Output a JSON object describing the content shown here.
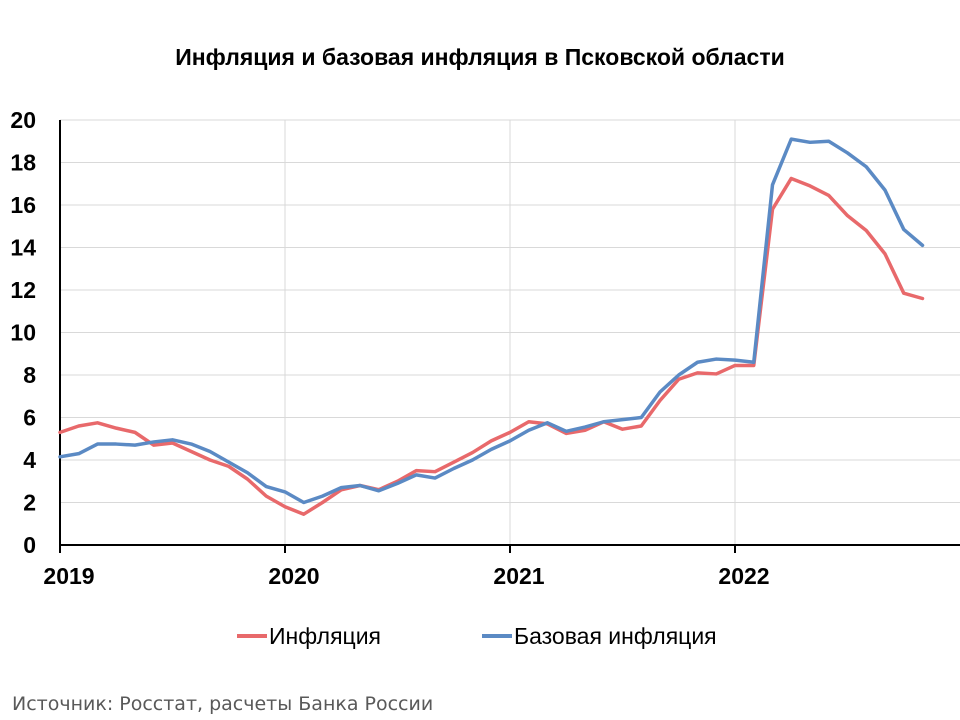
{
  "chart_data": {
    "type": "line",
    "title": "Инфляция и базовая инфляция в Псковской области",
    "ylim": [
      0,
      20
    ],
    "yticks": [
      0,
      2,
      4,
      6,
      8,
      10,
      12,
      14,
      16,
      18,
      20
    ],
    "xlim": [
      "2019-01",
      "2023-01"
    ],
    "xticks": [
      "2019",
      "2020",
      "2021",
      "2022"
    ],
    "grid": true,
    "legend_position": "bottom",
    "x": [
      "2019-01",
      "2019-02",
      "2019-03",
      "2019-04",
      "2019-05",
      "2019-06",
      "2019-07",
      "2019-08",
      "2019-09",
      "2019-10",
      "2019-11",
      "2019-12",
      "2020-01",
      "2020-02",
      "2020-03",
      "2020-04",
      "2020-05",
      "2020-06",
      "2020-07",
      "2020-08",
      "2020-09",
      "2020-10",
      "2020-11",
      "2020-12",
      "2021-01",
      "2021-02",
      "2021-03",
      "2021-04",
      "2021-05",
      "2021-06",
      "2021-07",
      "2021-08",
      "2021-09",
      "2021-10",
      "2021-11",
      "2021-12",
      "2022-01",
      "2022-02",
      "2022-03",
      "2022-04",
      "2022-05",
      "2022-06",
      "2022-07",
      "2022-08",
      "2022-09",
      "2022-10",
      "2022-11"
    ],
    "series": [
      {
        "name": "Инфляция",
        "color": "#E8696B",
        "values": [
          5.3,
          5.6,
          5.75,
          5.5,
          5.3,
          4.7,
          4.8,
          4.4,
          4.0,
          3.7,
          3.1,
          2.3,
          1.8,
          1.45,
          2.0,
          2.6,
          2.8,
          2.6,
          3.0,
          3.5,
          3.45,
          3.9,
          4.35,
          4.9,
          5.3,
          5.8,
          5.7,
          5.25,
          5.4,
          5.8,
          5.45,
          5.6,
          6.8,
          7.8,
          8.1,
          8.05,
          8.45,
          8.45,
          15.8,
          17.25,
          16.9,
          16.45,
          15.5,
          14.8,
          13.7,
          11.85,
          11.6
        ]
      },
      {
        "name": "Базовая инфляция",
        "color": "#5B8AC4",
        "values": [
          4.15,
          4.3,
          4.75,
          4.75,
          4.7,
          4.85,
          4.95,
          4.75,
          4.4,
          3.9,
          3.4,
          2.75,
          2.5,
          2.0,
          2.3,
          2.7,
          2.8,
          2.55,
          2.9,
          3.3,
          3.15,
          3.6,
          4.0,
          4.5,
          4.9,
          5.4,
          5.75,
          5.35,
          5.55,
          5.8,
          5.9,
          6.0,
          7.2,
          8.0,
          8.6,
          8.75,
          8.7,
          8.6,
          16.95,
          19.1,
          18.95,
          19.0,
          18.45,
          17.8,
          16.7,
          14.85,
          14.1
        ]
      }
    ],
    "source": "Источник: Росстат, расчеты Банка России"
  }
}
